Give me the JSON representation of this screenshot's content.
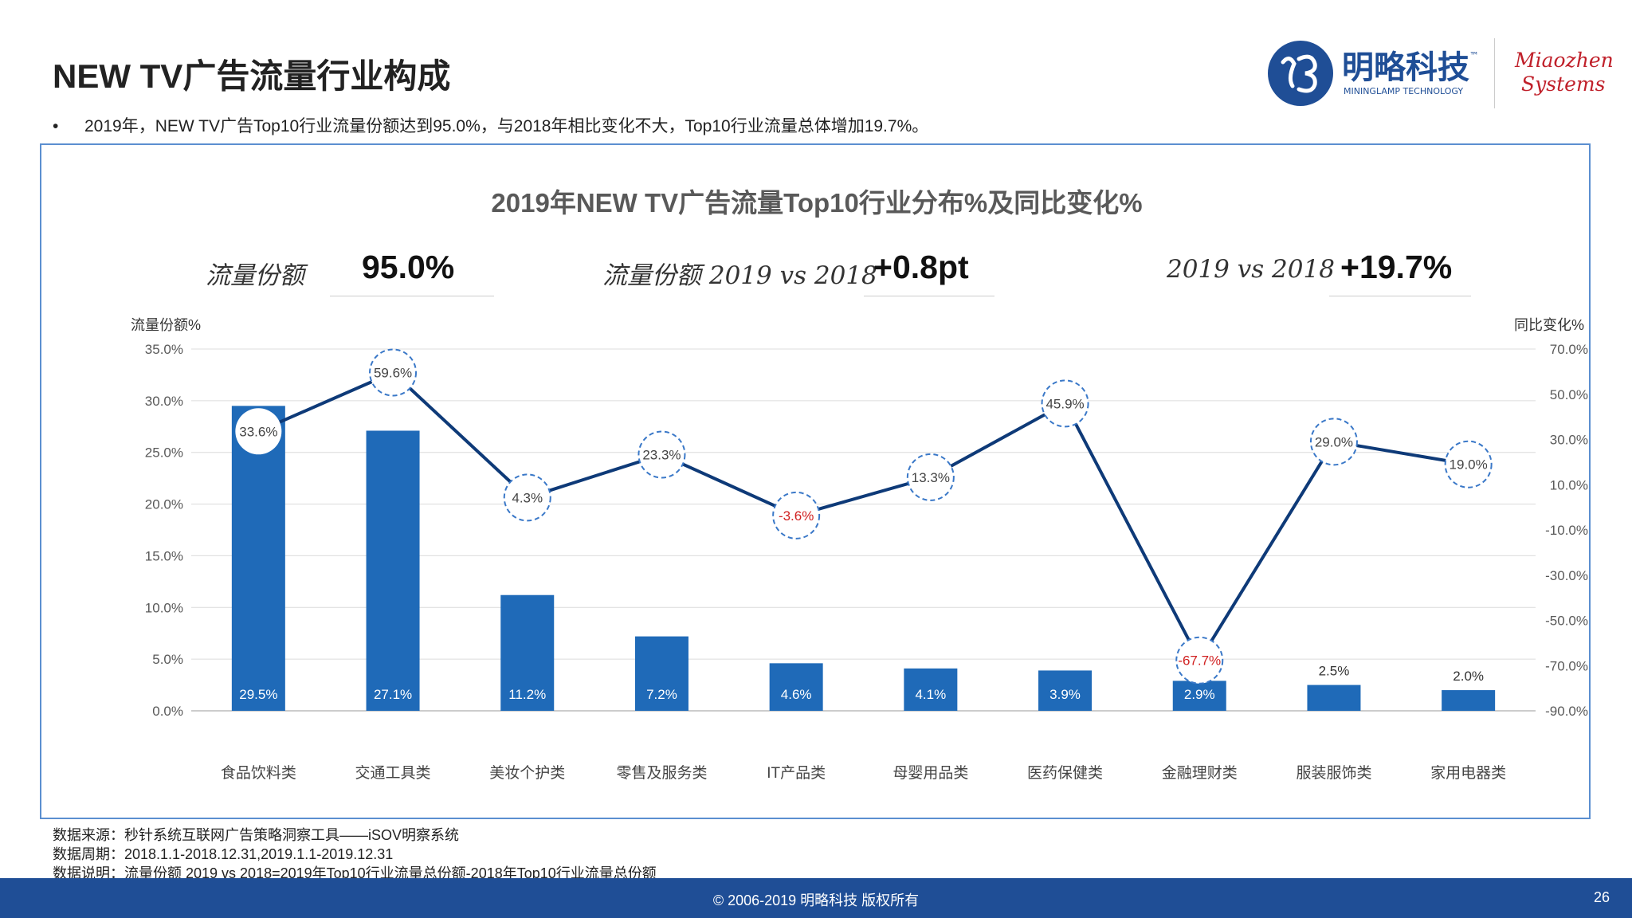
{
  "header": {
    "title": "NEW TV广告流量行业构成",
    "bullet": "2019年，NEW TV广告Top10行业流量份额达到95.0%，与2018年相比变化不大，Top10行业流量总体增加19.7%。"
  },
  "logos": {
    "mininglamp_cn": "明略科技",
    "mininglamp_tm": "™",
    "mininglamp_en": "MININGLAMP TECHNOLOGY",
    "miaozhen_line1": "Miaozhen",
    "miaozhen_line2": "Systems",
    "brand_color": "#1f4e96",
    "miaozhen_color": "#c0202a"
  },
  "kpis": [
    {
      "label": "流量份额",
      "value": "95.0%"
    },
    {
      "label": "流量份额 2019 vs 2018",
      "value": "+0.8pt"
    },
    {
      "label": "2019 vs 2018",
      "value": "+19.7%"
    }
  ],
  "chart_data": {
    "type": "bar",
    "title": "2019年NEW TV广告流量Top10行业分布%及同比变化%",
    "ylabel": "流量份额%",
    "y2label": "同比变化%",
    "ylim": [
      0,
      35
    ],
    "y_ticks": [
      "0.0%",
      "5.0%",
      "10.0%",
      "15.0%",
      "20.0%",
      "25.0%",
      "30.0%",
      "35.0%"
    ],
    "y2lim": [
      -90,
      70
    ],
    "y2_ticks": [
      "-90.0%",
      "-70.0%",
      "-50.0%",
      "-30.0%",
      "-10.0%",
      "10.0%",
      "30.0%",
      "50.0%",
      "70.0%"
    ],
    "categories": [
      "食品饮料类",
      "交通工具类",
      "美妆个护类",
      "零售及服务类",
      "IT产品类",
      "母婴用品类",
      "医药保健类",
      "金融理财类",
      "服装服饰类",
      "家用电器类"
    ],
    "series": [
      {
        "name": "流量份额%",
        "type": "bar",
        "axis": "left",
        "values": [
          29.5,
          27.1,
          11.2,
          7.2,
          4.6,
          4.1,
          3.9,
          2.9,
          2.5,
          2.0
        ],
        "labels": [
          "29.5%",
          "27.1%",
          "11.2%",
          "7.2%",
          "4.6%",
          "4.1%",
          "3.9%",
          "2.9%",
          "2.5%",
          "2.0%"
        ],
        "color": "#1f6ab8"
      },
      {
        "name": "同比变化%",
        "type": "line",
        "axis": "right",
        "values": [
          33.6,
          59.6,
          4.3,
          23.3,
          -3.6,
          13.3,
          45.9,
          -67.7,
          29.0,
          19.0
        ],
        "labels": [
          "33.6%",
          "59.6%",
          "4.3%",
          "23.3%",
          "-3.6%",
          "13.3%",
          "45.9%",
          "-67.7%",
          "29.0%",
          "19.0%"
        ],
        "color": "#0e3a78",
        "negative_color": "#d02020"
      }
    ]
  },
  "footer": {
    "source": "数据来源：秒针系统互联网广告策略洞察工具——iSOV明察系统",
    "period": "数据周期：2018.1.1-2018.12.31,2019.1.1-2019.12.31",
    "note": "数据说明：流量份额 2019 vs 2018=2019年Top10行业流量总份额-2018年Top10行业流量总份额",
    "copyright": "© 2006-2019 明略科技 版权所有",
    "page_number": "26"
  }
}
